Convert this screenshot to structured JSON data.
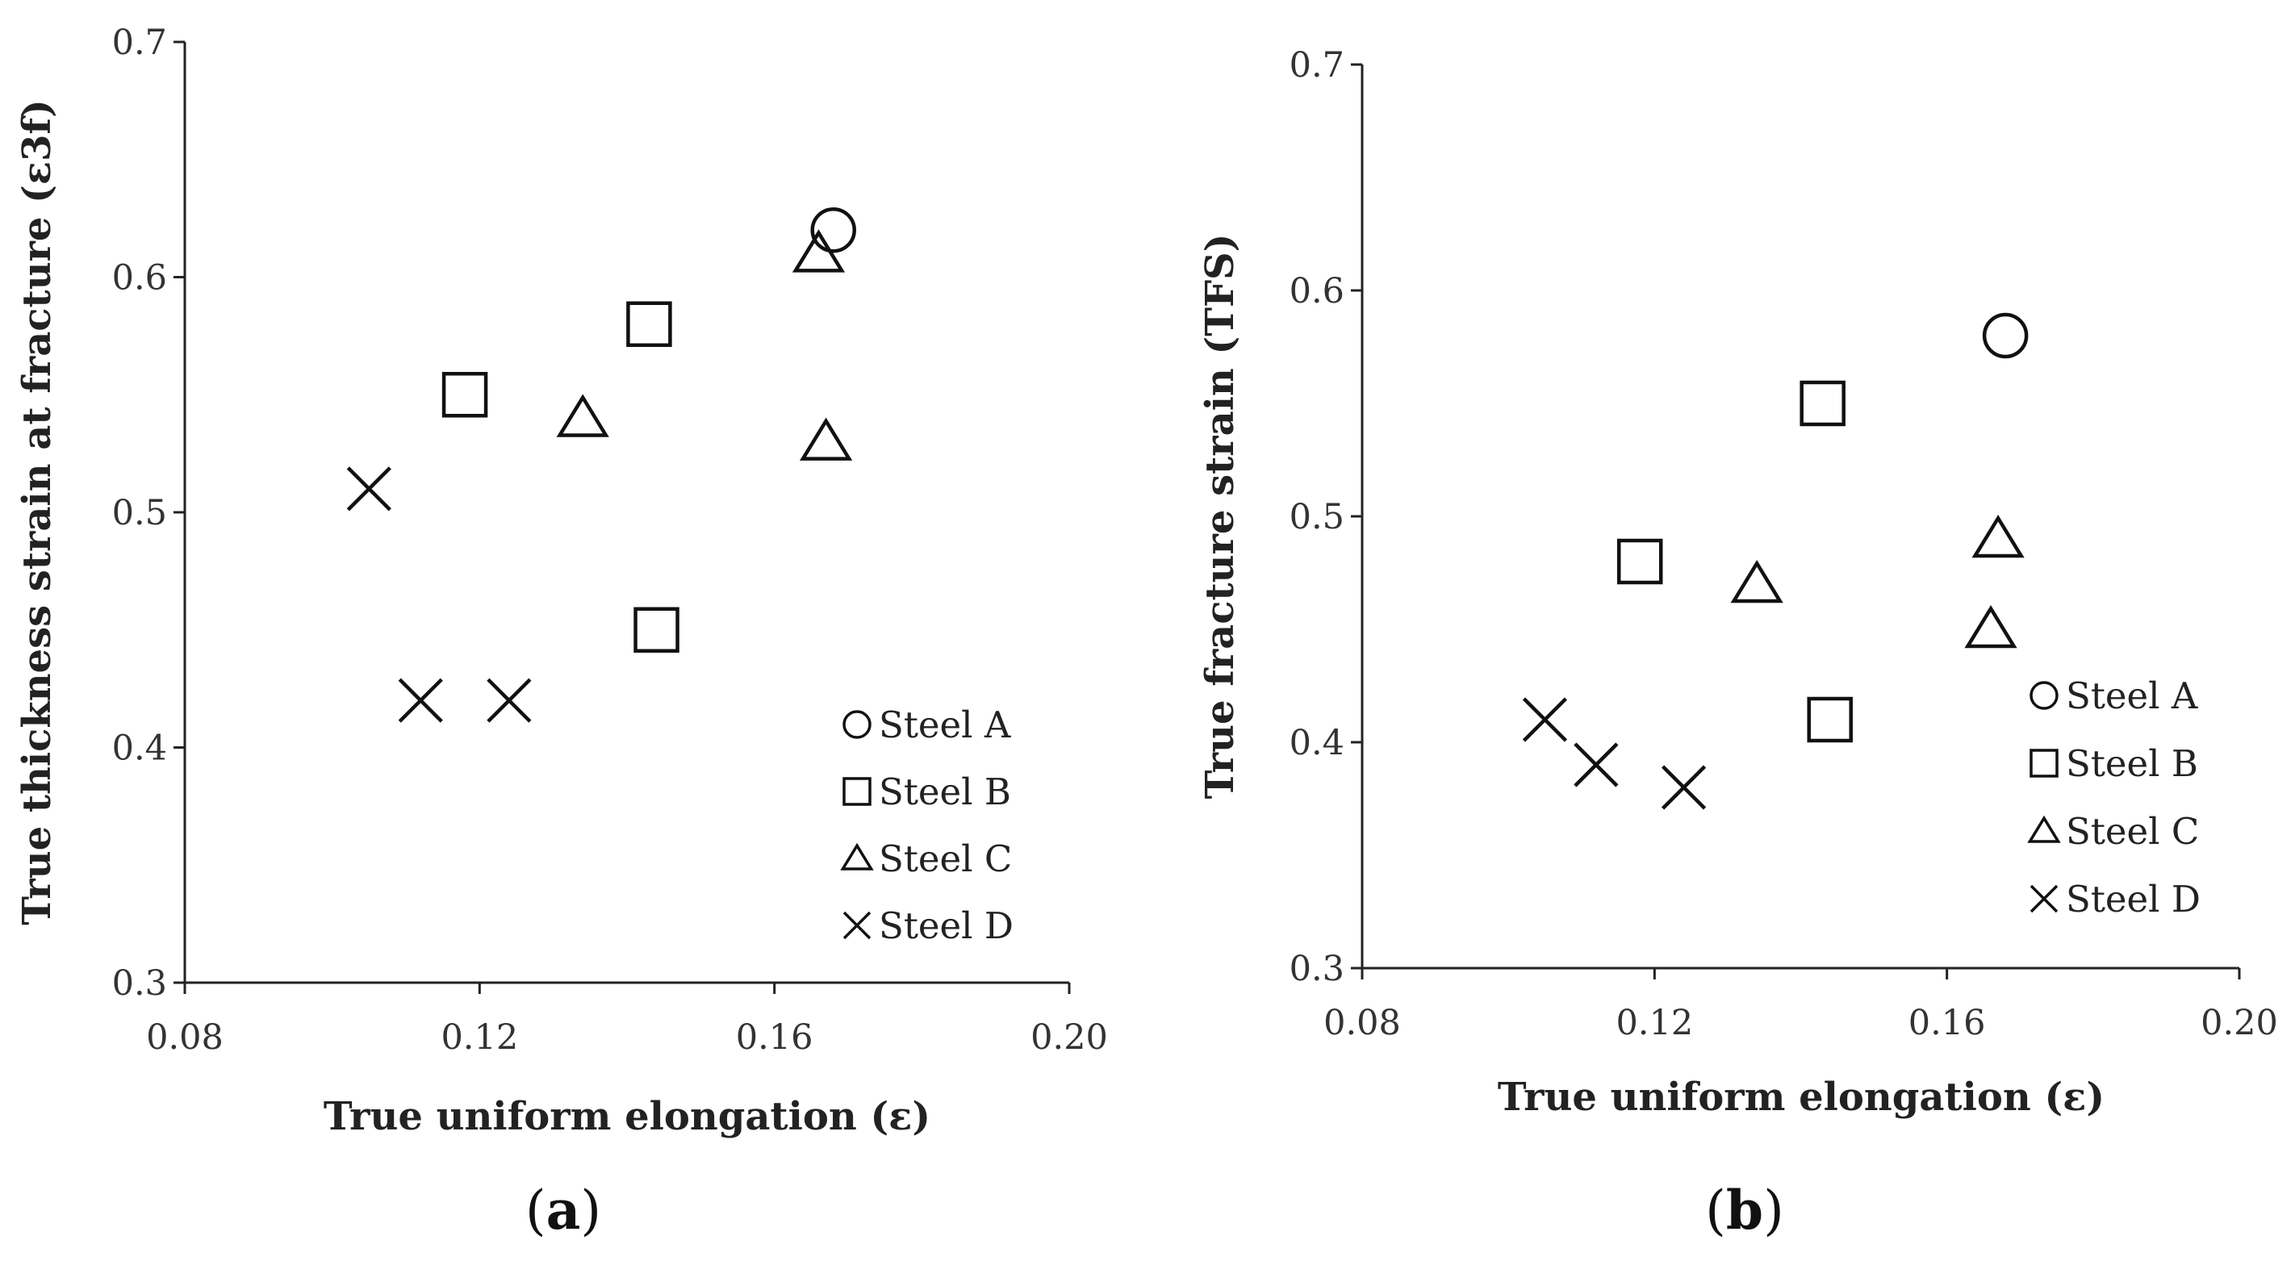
{
  "chart_data": [
    {
      "type": "scatter",
      "panel": "a",
      "panel_label": "a",
      "xlabel": "True uniform elongation (ε)",
      "ylabel": "True thickness strain at fracture (ε3f)",
      "xlim": [
        0.08,
        0.2
      ],
      "ylim": [
        0.3,
        0.7
      ],
      "xticks": [
        0.08,
        0.12,
        0.16,
        0.2
      ],
      "xtick_labels": [
        "0.08",
        "0.12",
        "0.16",
        "0.20"
      ],
      "yticks": [
        0.3,
        0.4,
        0.5,
        0.6,
        0.7
      ],
      "ytick_labels": [
        "0.3",
        "0.4",
        "0.5",
        "0.6",
        "0.7"
      ],
      "grid": false,
      "legend_position": "bottom-right",
      "series": [
        {
          "name": "Steel A",
          "marker": "circle",
          "points": [
            [
              0.168,
              0.62
            ]
          ]
        },
        {
          "name": "Steel B",
          "marker": "square",
          "points": [
            [
              0.118,
              0.55
            ],
            [
              0.143,
              0.58
            ],
            [
              0.144,
              0.45
            ]
          ]
        },
        {
          "name": "Steel C",
          "marker": "triangle",
          "points": [
            [
              0.134,
              0.54
            ],
            [
              0.166,
              0.61
            ],
            [
              0.167,
              0.53
            ]
          ]
        },
        {
          "name": "Steel D",
          "marker": "x",
          "points": [
            [
              0.105,
              0.51
            ],
            [
              0.112,
              0.42
            ],
            [
              0.124,
              0.42
            ]
          ]
        }
      ]
    },
    {
      "type": "scatter",
      "panel": "b",
      "panel_label": "b",
      "xlabel": "True uniform elongation (ε)",
      "ylabel": "True fracture strain (TFS)",
      "xlim": [
        0.08,
        0.2
      ],
      "ylim": [
        0.3,
        0.7
      ],
      "xticks": [
        0.08,
        0.12,
        0.16,
        0.2
      ],
      "xtick_labels": [
        "0.08",
        "0.12",
        "0.16",
        "0.20"
      ],
      "yticks": [
        0.3,
        0.4,
        0.5,
        0.6,
        0.7
      ],
      "ytick_labels": [
        "0.3",
        "0.4",
        "0.5",
        "0.6",
        "0.7"
      ],
      "grid": false,
      "legend_position": "bottom-right",
      "series": [
        {
          "name": "Steel A",
          "marker": "circle",
          "points": [
            [
              0.168,
              0.58
            ]
          ]
        },
        {
          "name": "Steel B",
          "marker": "square",
          "points": [
            [
              0.118,
              0.48
            ],
            [
              0.143,
              0.55
            ],
            [
              0.144,
              0.41
            ]
          ]
        },
        {
          "name": "Steel C",
          "marker": "triangle",
          "points": [
            [
              0.134,
              0.47
            ],
            [
              0.166,
              0.45
            ],
            [
              0.167,
              0.49
            ]
          ]
        },
        {
          "name": "Steel D",
          "marker": "x",
          "points": [
            [
              0.105,
              0.41
            ],
            [
              0.112,
              0.39
            ],
            [
              0.124,
              0.38
            ]
          ]
        }
      ]
    }
  ]
}
